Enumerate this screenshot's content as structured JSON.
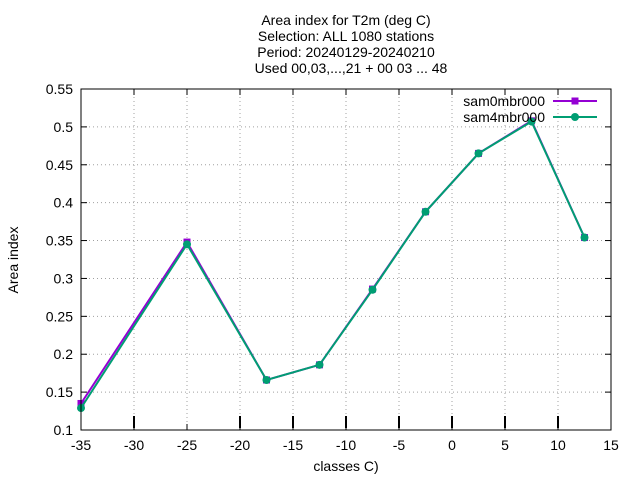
{
  "chart_data": {
    "type": "line",
    "title_lines": [
      "Area index  for T2m (deg C)",
      "Selection: ALL    1080 stations",
      "Period: 20240129-20240210",
      "Used 00,03,...,21 + 00 03 ... 48"
    ],
    "xlabel": "classes C)",
    "ylabel": "Area index",
    "xlim": [
      -35,
      15
    ],
    "ylim": [
      0.1,
      0.55
    ],
    "xticks": [
      -35,
      -30,
      -25,
      -20,
      -15,
      -10,
      -5,
      0,
      5,
      10,
      15
    ],
    "yticks": [
      0.1,
      0.15,
      0.2,
      0.25,
      0.3,
      0.35,
      0.4,
      0.45,
      0.5,
      0.55
    ],
    "grid": true,
    "legend_position": "top-right",
    "marker_x": [
      -30,
      -20,
      -15,
      -10,
      -5,
      0,
      5,
      10
    ],
    "series": [
      {
        "name": "sam0mbr000",
        "color": "#9400d3",
        "x": [
          -35,
          -25,
          -17.5,
          -12.5,
          -7.5,
          -2.5,
          2.5,
          7.5,
          12.5
        ],
        "y": [
          0.135,
          0.348,
          0.166,
          0.186,
          0.286,
          0.388,
          0.465,
          0.508,
          0.354
        ]
      },
      {
        "name": "sam4mbr000",
        "color": "#009e73",
        "x": [
          -35,
          -25,
          -17.5,
          -12.5,
          -7.5,
          -2.5,
          2.5,
          7.5,
          12.5
        ],
        "y": [
          0.129,
          0.345,
          0.166,
          0.186,
          0.285,
          0.388,
          0.465,
          0.507,
          0.354
        ]
      }
    ]
  }
}
